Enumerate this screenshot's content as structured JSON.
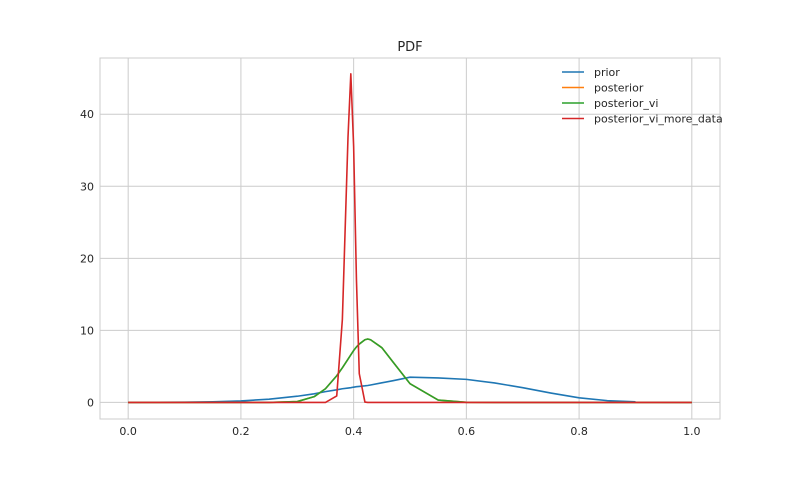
{
  "chart_data": {
    "type": "line",
    "title": "PDF",
    "xlabel": "",
    "ylabel": "",
    "xlim": [
      -0.05,
      1.05
    ],
    "ylim": [
      -2.3,
      47.8
    ],
    "xticks": [
      0.0,
      0.2,
      0.4,
      0.6,
      0.8,
      1.0
    ],
    "xtick_labels": [
      "0.0",
      "0.2",
      "0.4",
      "0.6",
      "0.8",
      "1.0"
    ],
    "yticks": [
      0,
      10,
      20,
      30,
      40
    ],
    "ytick_labels": [
      "0",
      "10",
      "20",
      "30",
      "40"
    ],
    "grid": true,
    "legend_position": "top-right",
    "x": [
      0.0,
      0.05,
      0.1,
      0.15,
      0.2,
      0.25,
      0.3,
      0.33,
      0.35,
      0.37,
      0.38,
      0.39,
      0.395,
      0.4,
      0.405,
      0.41,
      0.42,
      0.425,
      0.43,
      0.45,
      0.47,
      0.5,
      0.55,
      0.6,
      0.65,
      0.7,
      0.75,
      0.8,
      0.85,
      0.9,
      0.95,
      1.0
    ],
    "series": [
      {
        "name": "prior",
        "color": "#1f77b4",
        "values": [
          0.0,
          0.01,
          0.03,
          0.09,
          0.21,
          0.45,
          0.86,
          1.2,
          1.5,
          1.75,
          1.9,
          2.0,
          2.05,
          2.12,
          2.18,
          2.22,
          2.3,
          2.35,
          2.42,
          2.72,
          3.02,
          3.5,
          3.4,
          3.2,
          2.7,
          2.05,
          1.3,
          0.64,
          0.25,
          0.08,
          0.02,
          0.0
        ]
      },
      {
        "name": "posterior",
        "color": "#ff7f0e",
        "values": [
          0.0,
          0.0,
          0.0,
          0.0,
          0.0,
          0.0,
          0.12,
          0.8,
          1.9,
          3.7,
          4.8,
          6.0,
          6.6,
          7.2,
          7.7,
          8.1,
          8.7,
          8.8,
          8.7,
          7.6,
          5.6,
          2.6,
          0.33,
          0.02,
          0.0,
          0.0,
          0.0,
          0.0,
          0.0,
          0.0,
          0.0,
          0.0
        ]
      },
      {
        "name": "posterior_vi",
        "color": "#2ca02c",
        "values": [
          0.0,
          0.0,
          0.0,
          0.0,
          0.0,
          0.0,
          0.12,
          0.8,
          1.9,
          3.7,
          4.8,
          6.0,
          6.6,
          7.2,
          7.7,
          8.1,
          8.7,
          8.8,
          8.7,
          7.6,
          5.6,
          2.6,
          0.33,
          0.02,
          0.0,
          0.0,
          0.0,
          0.0,
          0.0,
          0.0,
          0.0,
          0.0
        ]
      },
      {
        "name": "posterior_vi_more_data",
        "color": "#d62728",
        "values": [
          0.0,
          0.0,
          0.0,
          0.0,
          0.0,
          0.0,
          0.0,
          0.0,
          0.0,
          0.9,
          11.5,
          36.8,
          45.6,
          35.5,
          17.0,
          4.0,
          0.05,
          0.0,
          0.0,
          0.0,
          0.0,
          0.0,
          0.0,
          0.0,
          0.0,
          0.0,
          0.0,
          0.0,
          0.0,
          0.0,
          0.0,
          0.0
        ]
      }
    ]
  }
}
